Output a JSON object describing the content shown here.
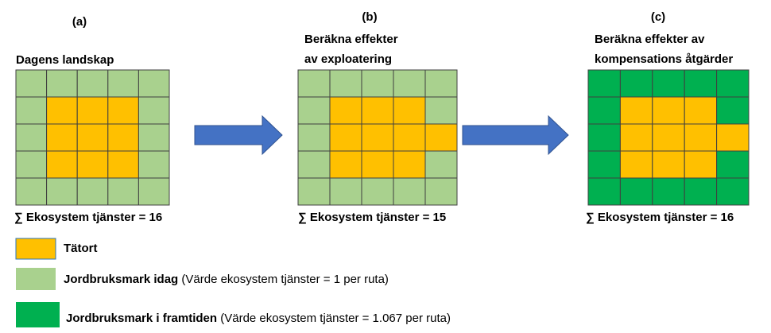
{
  "panels": [
    {
      "letter": "(a)",
      "title_lines": [
        "Dagens landskap"
      ],
      "sum": "∑ Ekosystem tjänster = 16"
    },
    {
      "letter": "(b)",
      "title_lines": [
        "Beräkna effekter",
        "av exploatering"
      ],
      "sum": "∑ Ekosystem tjänster = 15"
    },
    {
      "letter": "(c)",
      "title_lines": [
        "Beräkna effekter av",
        "kompensations åtgärder"
      ],
      "sum": "∑ Ekosystem tjänster = 16"
    }
  ],
  "legend": [
    {
      "label": "Tätort"
    },
    {
      "label": "Jordbruksmark idag",
      "note": " (Värde ekosystem tjänster = 1 per ruta)"
    },
    {
      "label": "Jordbruksmark i framtiden",
      "note": " (Värde ekosystem tjänster = 1.067 per ruta)"
    }
  ]
}
